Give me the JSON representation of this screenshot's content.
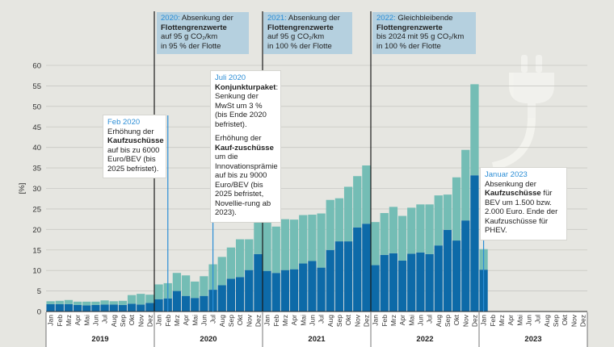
{
  "chart_data": {
    "type": "bar",
    "stacked": true,
    "ylabel": "[%]",
    "ylim": [
      0,
      60
    ],
    "yticks": [
      0,
      5,
      10,
      15,
      20,
      25,
      30,
      35,
      40,
      45,
      50,
      55,
      60
    ],
    "grid": true,
    "years": [
      "2019",
      "2020",
      "2021",
      "2022",
      "2023"
    ],
    "months": [
      "Jan",
      "Feb",
      "Mrz",
      "Apr",
      "Mai",
      "Jun",
      "Jul",
      "Aug",
      "Sep",
      "Okt",
      "Nov",
      "Dez"
    ],
    "series": [
      {
        "key": "bev",
        "color": "#0d6aa8",
        "values": [
          1.8,
          1.8,
          1.8,
          1.6,
          1.5,
          1.6,
          1.7,
          1.7,
          1.6,
          1.9,
          1.7,
          2.1,
          3.0,
          3.2,
          5.0,
          3.8,
          3.3,
          3.8,
          5.3,
          6.4,
          8.0,
          8.4,
          10.1,
          14.0,
          9.9,
          9.4,
          10.1,
          10.3,
          11.7,
          12.3,
          10.7,
          15.0,
          17.1,
          17.1,
          20.5,
          21.4,
          11.3,
          13.8,
          14.2,
          12.4,
          14.1,
          14.4,
          14.0,
          16.1,
          19.9,
          17.3,
          22.2,
          33.2,
          10.2,
          null,
          null,
          null,
          null,
          null,
          null,
          null,
          null,
          null,
          null,
          null
        ]
      },
      {
        "key": "phev",
        "color": "#74bdb5",
        "values": [
          0.7,
          0.8,
          1.0,
          0.8,
          0.9,
          0.8,
          1.0,
          0.8,
          1.0,
          2.1,
          2.6,
          2.0,
          3.6,
          3.7,
          4.4,
          5.0,
          4.0,
          4.8,
          6.2,
          6.9,
          7.6,
          9.2,
          7.5,
          12.6,
          11.9,
          11.3,
          12.4,
          12.1,
          11.8,
          11.3,
          13.2,
          12.2,
          10.5,
          13.3,
          12.5,
          14.2,
          10.5,
          10.2,
          11.3,
          10.9,
          11.2,
          11.7,
          12.1,
          12.2,
          8.6,
          15.4,
          17.2,
          22.2,
          5.0,
          null,
          null,
          null,
          null,
          null,
          null,
          null,
          null,
          null,
          null,
          null
        ]
      }
    ]
  },
  "annotations": {
    "policy": [
      {
        "key": "p2020",
        "head": "2020:",
        "line1": " Absenkung der",
        "line2": "Flottengrenzwerte",
        "line3": "auf 95 g CO₂/km",
        "line4": "in 95 % der Flotte"
      },
      {
        "key": "p2021",
        "head": "2021:",
        "line1": " Absenkung der",
        "line2": "Flottengrenzwerte",
        "line3": "auf 95 g CO₂/km",
        "line4": "in 100 % der Flotte"
      },
      {
        "key": "p2022",
        "head": "2022:",
        "line1": " Gleichbleibende",
        "line2": "Flottengrenzwerte",
        "line3": "bis 2024 mit 95 g CO₂/km",
        "line4": "in 100 % der Flotte"
      }
    ],
    "feb2020": {
      "head": "Feb 2020",
      "text": "Erhöhung der <b>Kaufzuschüsse</b> auf bis zu 6000 Euro/BEV (bis 2025 befristet)."
    },
    "jul2020": {
      "head": "Juli 2020",
      "text1": "<b>Konjunkturpaket</b>: Senkung der MwSt um 3 % (bis Ende 2020 befristet).",
      "text2": "Erhöhung der <b>Kauf-zuschüsse</b> um die Innovationsprämie auf bis zu 9000 Euro/BEV (bis 2025 befristet, Novellie-rung ab 2023)."
    },
    "jan2023": {
      "head": "Januar 2023",
      "text": "Absenkung der <b>Kaufzuschüsse</b> für BEV um 1.500 bzw. 2.000 Euro. Ende der Kaufzuschüsse für PHEV."
    }
  }
}
